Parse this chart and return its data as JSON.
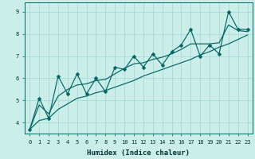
{
  "xlabel": "Humidex (Indice chaleur)",
  "xlim_left": -0.5,
  "xlim_right": 23.5,
  "ylim": [
    3.5,
    9.4
  ],
  "xticks": [
    0,
    1,
    2,
    3,
    4,
    5,
    6,
    7,
    8,
    9,
    10,
    11,
    12,
    13,
    14,
    15,
    16,
    17,
    18,
    19,
    20,
    21,
    22,
    23
  ],
  "yticks": [
    4,
    5,
    6,
    7,
    8,
    9
  ],
  "bg_color": "#cceee8",
  "line_color": "#006666",
  "grid_color": "#aadddd",
  "x": [
    0,
    1,
    2,
    3,
    4,
    5,
    6,
    7,
    8,
    9,
    10,
    11,
    12,
    13,
    14,
    15,
    16,
    17,
    18,
    19,
    20,
    21,
    22,
    23
  ],
  "y_zigzag": [
    3.7,
    5.1,
    4.2,
    6.1,
    5.3,
    6.2,
    5.3,
    6.0,
    5.4,
    6.5,
    6.4,
    7.0,
    6.5,
    7.1,
    6.6,
    7.2,
    7.5,
    8.2,
    7.0,
    7.5,
    7.1,
    9.0,
    8.2,
    8.2
  ],
  "y_trend_low": [
    3.7,
    4.1,
    4.2,
    4.6,
    4.85,
    5.1,
    5.2,
    5.35,
    5.45,
    5.6,
    5.75,
    5.9,
    6.1,
    6.25,
    6.4,
    6.55,
    6.7,
    6.85,
    7.05,
    7.2,
    7.4,
    7.55,
    7.75,
    7.95
  ],
  "y_trend_mid": [
    3.7,
    4.8,
    4.4,
    5.2,
    5.5,
    5.7,
    5.75,
    5.9,
    5.95,
    6.2,
    6.45,
    6.65,
    6.7,
    6.85,
    6.95,
    7.1,
    7.3,
    7.55,
    7.55,
    7.55,
    7.6,
    8.4,
    8.15,
    8.1
  ],
  "markersize": 2.5,
  "linewidth": 0.85,
  "tick_fontsize": 5.0,
  "xlabel_fontsize": 6.5
}
